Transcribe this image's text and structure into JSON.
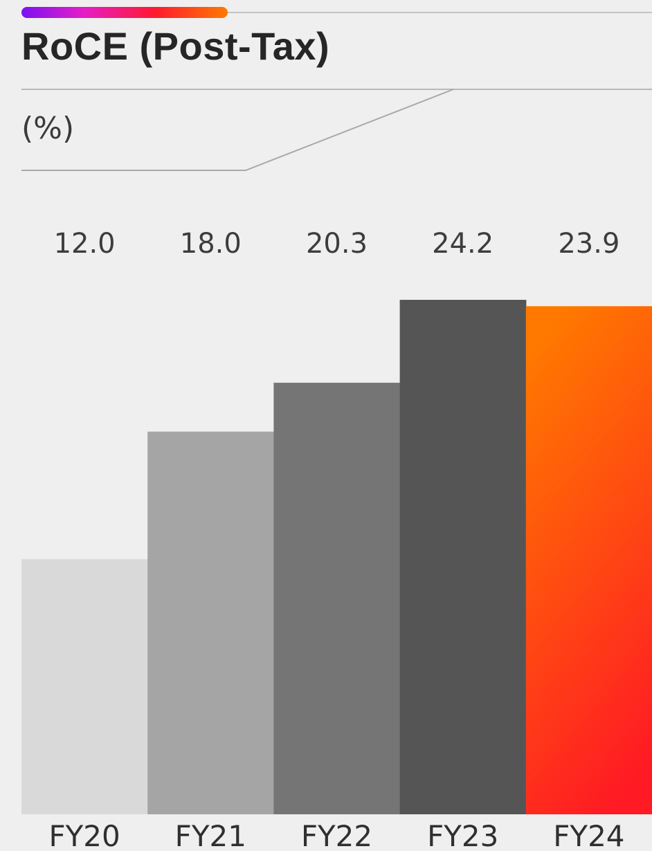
{
  "title": "RoCE (Post-Tax)",
  "unit_label": "(%)",
  "accent_gradient": [
    "#7a12f0",
    "#e51dc8",
    "#ff1a2e",
    "#ff7a00"
  ],
  "chart_data": {
    "type": "bar",
    "title": "RoCE (Post-Tax)",
    "ylabel": "(%)",
    "xlabel": "",
    "categories": [
      "FY20",
      "FY21",
      "FY22",
      "FY23",
      "FY24"
    ],
    "values": [
      12.0,
      18.0,
      20.3,
      24.2,
      23.9
    ],
    "value_labels": [
      "12.0",
      "18.0",
      "20.3",
      "24.2",
      "23.9"
    ],
    "bar_colors": [
      "#d9d9d9",
      "#a5a5a5",
      "#757575",
      "#555555",
      "highlight-gradient"
    ],
    "highlight_gradient": [
      "#ff7800",
      "#ff1a24"
    ],
    "ylim": [
      0,
      24.2
    ],
    "grid": false,
    "legend": "none"
  }
}
